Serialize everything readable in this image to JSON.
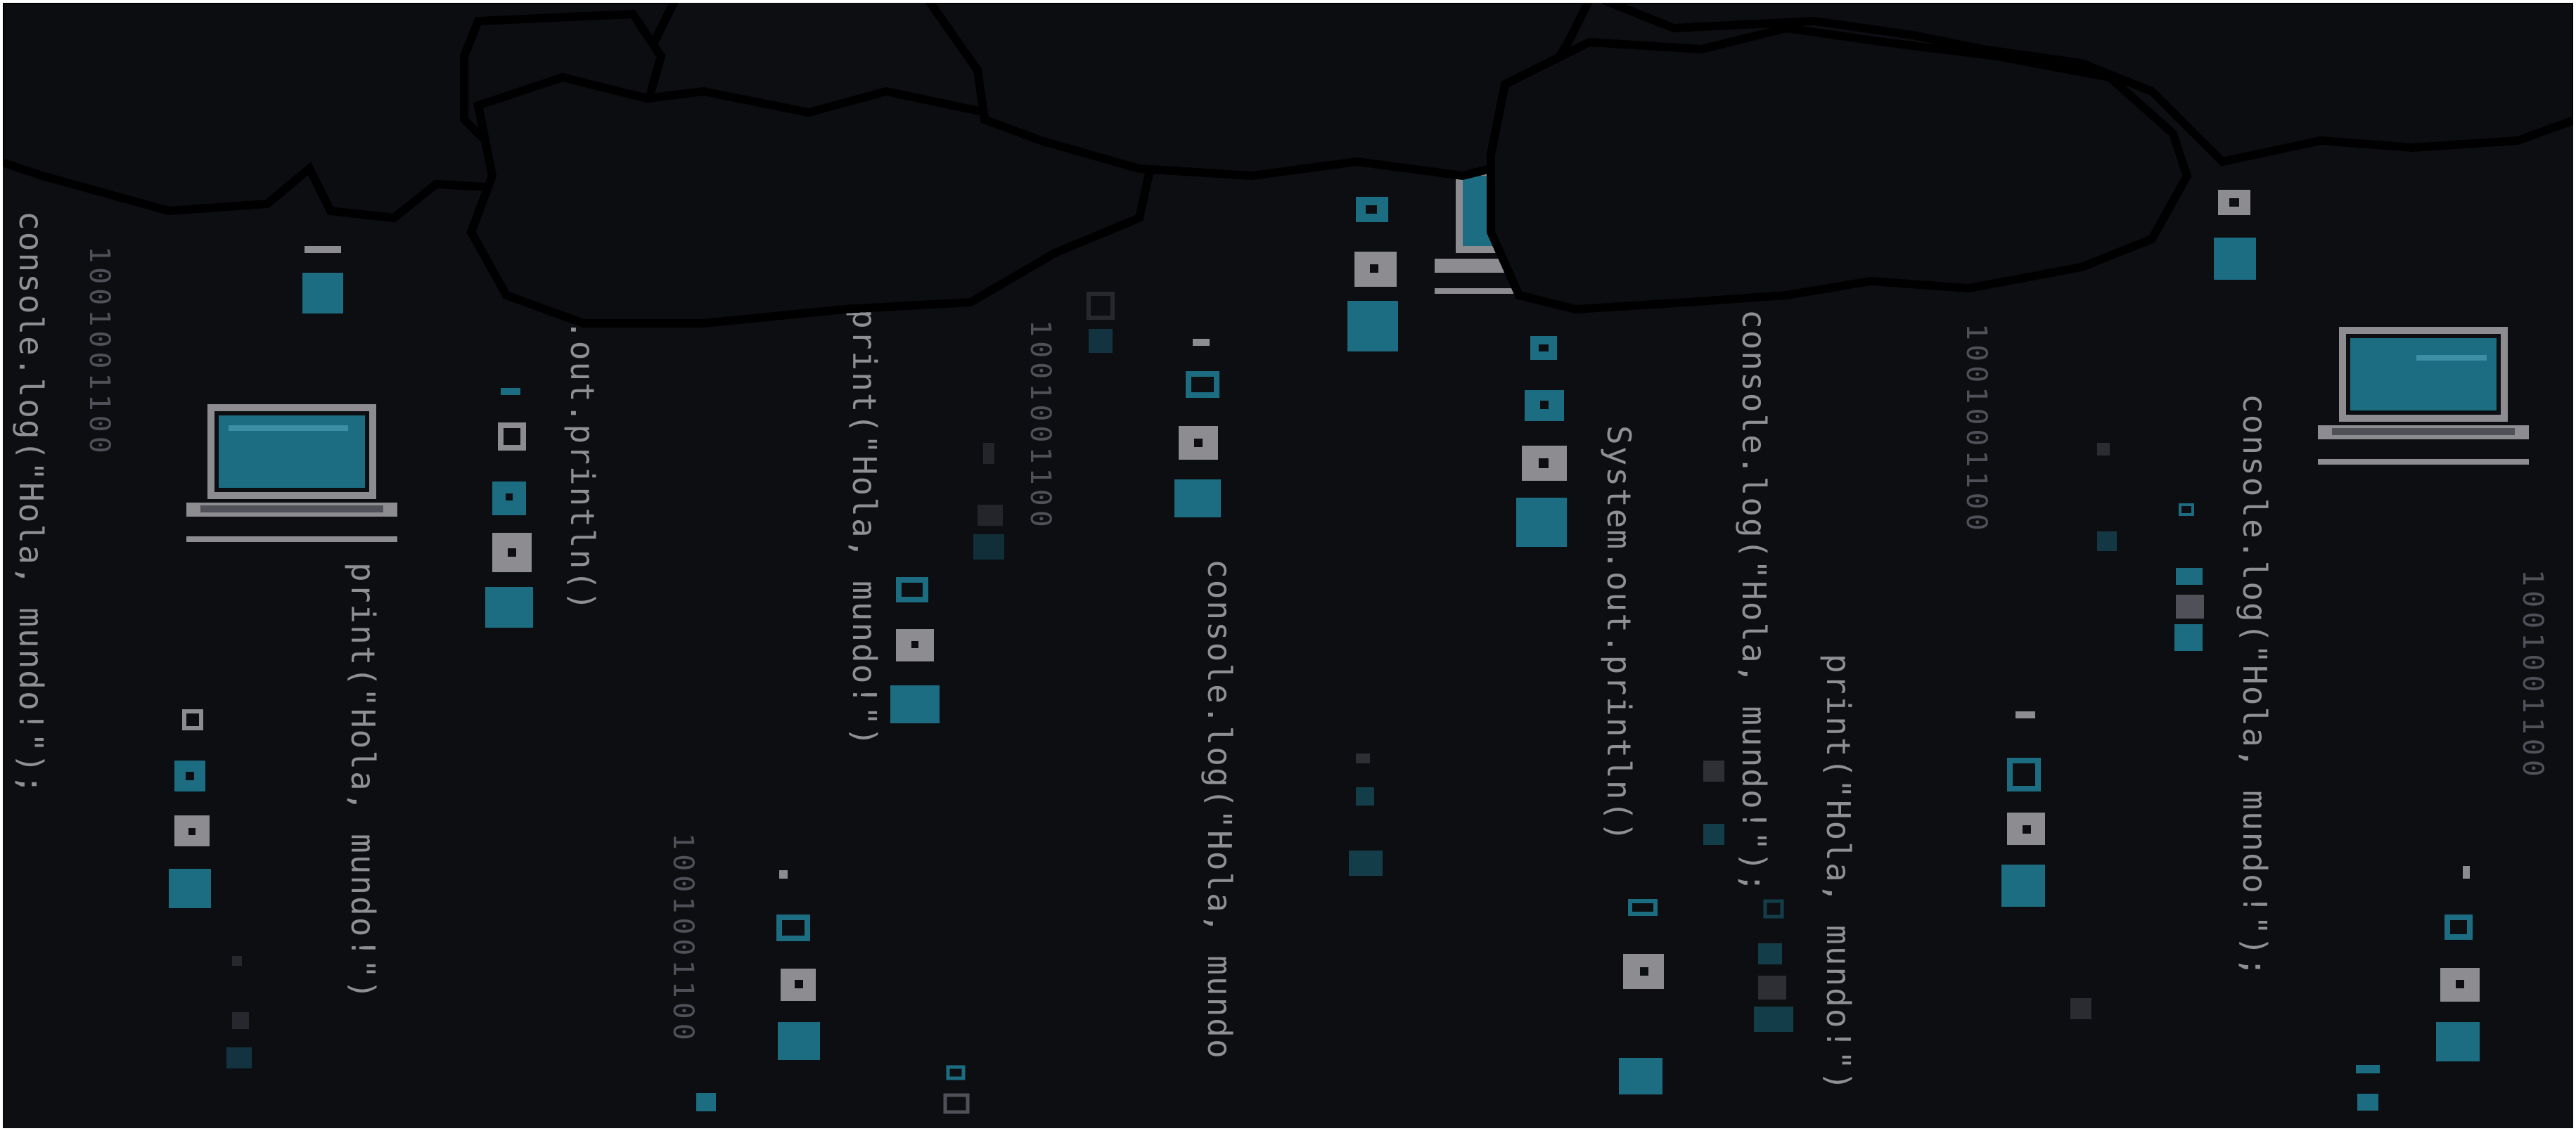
{
  "scene": {
    "title": "Pixel art code rain with clouds and laptops",
    "colors": {
      "background": "#0c0e12",
      "cloud": "#0b0d11",
      "cloud_outline": "#000000",
      "teal": "#1c6c82",
      "teal_bright": "#2a7f97",
      "gray_block": "#8d8c91",
      "text": "#8f8f94",
      "text_dim": "#505158"
    }
  },
  "code_streams": [
    {
      "text": "console.log(\"Hola, mundo!\");",
      "dim": false
    },
    {
      "text": "1001001100",
      "dim": true
    },
    {
      "text": "print(\"Hola, mundo!\")",
      "dim": false
    },
    {
      "text": ".out.println()",
      "dim": false
    },
    {
      "text": "1001001100",
      "dim": true
    },
    {
      "text": "print(\"Hola, mundo!\")",
      "dim": false
    },
    {
      "text": "1001001100",
      "dim": true
    },
    {
      "text": "console.log(\"Hola, mundo",
      "dim": false
    },
    {
      "text": "System.out.println()",
      "dim": false
    },
    {
      "text": "console.log(\"Hola, mundo!\");",
      "dim": false
    },
    {
      "text": "print(\"Hola, mundo!\")",
      "dim": false
    },
    {
      "text": "1001001100",
      "dim": true
    },
    {
      "text": "console.log(\"Hola, mundo!\");",
      "dim": false
    },
    {
      "text": "1001001100",
      "dim": true
    }
  ],
  "icons": {
    "laptop": "laptop-icon",
    "cloud": "cloud-icon",
    "data_drop": "data-drop-icon"
  }
}
